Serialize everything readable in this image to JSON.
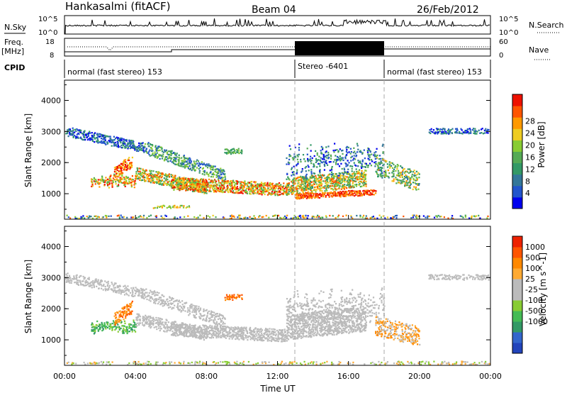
{
  "header": {
    "site": "Hankasalmi (fitACF)",
    "beam": "Beam 04",
    "date": "26/Feb/2012"
  },
  "nsky_panel": {
    "left_label": "N.Sky",
    "right_label": "N.Search",
    "left_ticks": [
      "10^5",
      "10^0"
    ],
    "right_ticks": [
      "10^5",
      "10^0"
    ]
  },
  "freq_panel": {
    "left_label_1": "Freq.",
    "left_label_2": "[MHz]",
    "left_ticks": [
      "18",
      "8"
    ],
    "right_label": "Nave",
    "right_ticks": [
      "60",
      "0"
    ]
  },
  "cpid": {
    "label": "CPID",
    "segments": [
      {
        "label": "normal (fast stereo) 153",
        "start_hour": 0,
        "end_hour": 13
      },
      {
        "label": "Stereo -6401",
        "start_hour": 13,
        "end_hour": 18
      },
      {
        "label": "normal (fast stereo) 153",
        "start_hour": 18,
        "end_hour": 24
      }
    ]
  },
  "chart_data": [
    {
      "type": "heatmap",
      "title": "",
      "xlabel": "",
      "ylabel": "Slant Range [km]",
      "xlim": [
        0,
        24
      ],
      "ylim": [
        180,
        4650
      ],
      "yticks": [
        "1000",
        "2000",
        "3000",
        "4000"
      ],
      "colorbar": {
        "label": "Power [dB]",
        "ticks": [
          "4",
          "8",
          "12",
          "16",
          "20",
          "24",
          "28"
        ],
        "colors": [
          "#0000ee",
          "#2255cc",
          "#337799",
          "#339966",
          "#55aa55",
          "#88cc33",
          "#eecc22",
          "#ff9900",
          "#ff5500",
          "#ee1100"
        ]
      }
    },
    {
      "type": "heatmap",
      "title": "",
      "xlabel": "Time UT",
      "ylabel": "Slant Range [km]",
      "xlim": [
        0,
        24
      ],
      "ylim": [
        180,
        4650
      ],
      "yticks": [
        "1000",
        "2000",
        "3000",
        "4000"
      ],
      "xticks": [
        "00:00",
        "04:00",
        "08:00",
        "12:00",
        "16:00",
        "20:00",
        "00:00"
      ],
      "colorbar": {
        "label": "Velocity [m s^-1]",
        "ticks": [
          "1000",
          "500",
          "100",
          "25",
          "-25",
          "-100",
          "-500",
          "-1000"
        ],
        "colors": [
          "#2244bb",
          "#3366cc",
          "#339966",
          "#44bb55",
          "#88cc33",
          "#bbbbbb",
          "#bbbbbb",
          "#ffaa33",
          "#ff8800",
          "#ff5500",
          "#ee2200"
        ]
      }
    }
  ]
}
